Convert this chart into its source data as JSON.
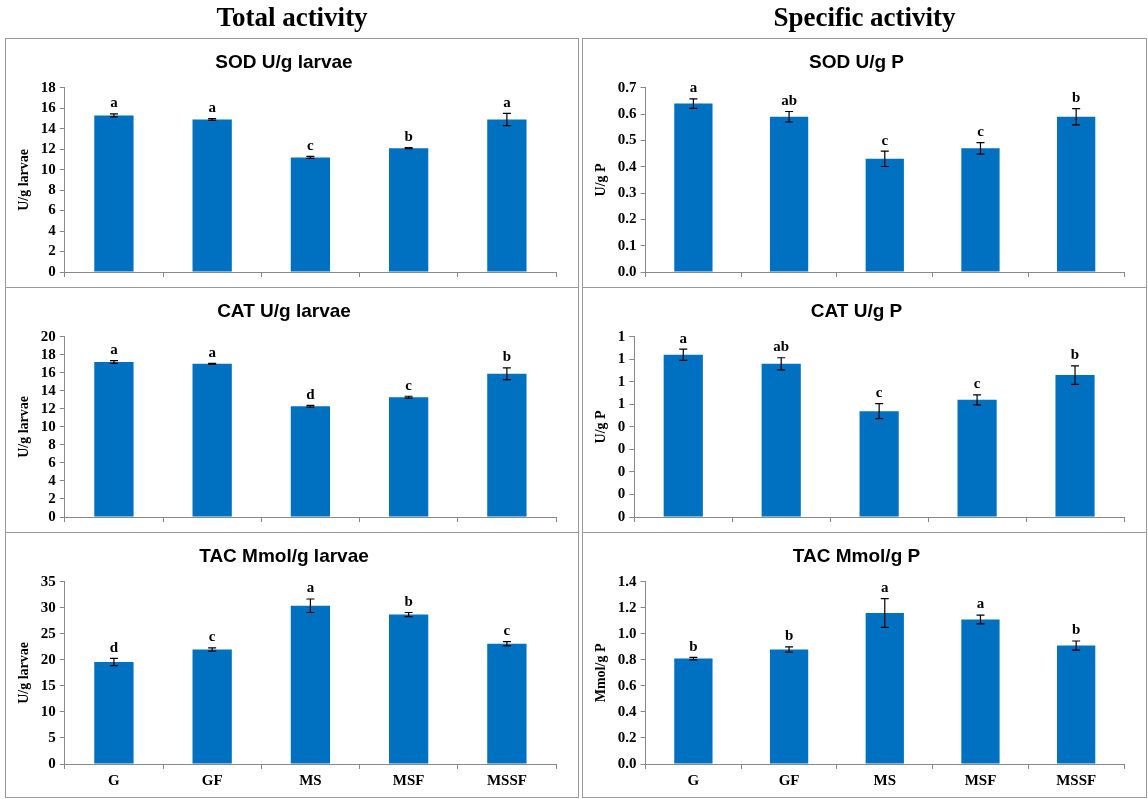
{
  "chart_data": [
    {
      "type": "bar",
      "title": "Total activity",
      "subtitle": "SOD U/g larvae",
      "ylabel": "U/g larvae",
      "categories": [
        "G",
        "GF",
        "MS",
        "MSF",
        "MSSF"
      ],
      "values": [
        15.3,
        14.9,
        11.2,
        12.1,
        14.9
      ],
      "errors": [
        0.15,
        0.08,
        0.1,
        0.05,
        0.6
      ],
      "color": "#0070c0",
      "ylim": [
        0,
        18
      ],
      "yticks": [
        0,
        2,
        4,
        6,
        8,
        10,
        12,
        14,
        16,
        18
      ],
      "grid": false,
      "legend": false,
      "tick_labels": "y",
      "annotations": [
        {
          "text": "a",
          "x": "G",
          "y": 15.45
        },
        {
          "text": "a",
          "x": "GF",
          "y": 14.98
        },
        {
          "text": "c",
          "x": "MS",
          "y": 11.3
        },
        {
          "text": "b",
          "x": "MSF",
          "y": 12.15
        },
        {
          "text": "a",
          "x": "MSSF",
          "y": 15.5
        }
      ]
    },
    {
      "type": "bar",
      "title": "Specific activity",
      "subtitle": "SOD U/g P",
      "ylabel": "U/g P",
      "categories": [
        "G",
        "GF",
        "MS",
        "MSF",
        "MSSF"
      ],
      "values": [
        0.64,
        0.59,
        0.43,
        0.47,
        0.59
      ],
      "errors": [
        0.018,
        0.02,
        0.029,
        0.022,
        0.031
      ],
      "color": "#0070c0",
      "ylim": [
        0,
        0.7
      ],
      "yticks": [
        {
          "value": 0,
          "label": "0.0"
        },
        0.1,
        0.2,
        0.3,
        0.4,
        0.5,
        0.6,
        0.7
      ],
      "grid": false,
      "legend": false,
      "tick_labels": "y",
      "annotations": [
        {
          "text": "a",
          "x": "G",
          "y": 0.658
        },
        {
          "text": "ab",
          "x": "GF",
          "y": 0.61
        },
        {
          "text": "c",
          "x": "MS",
          "y": 0.459
        },
        {
          "text": "c",
          "x": "MSF",
          "y": 0.492
        },
        {
          "text": "b",
          "x": "MSSF",
          "y": 0.621
        }
      ]
    },
    {
      "type": "bar",
      "title": "CAT U/g larvae",
      "ylabel": "U/g larvae",
      "categories": [
        "G",
        "GF",
        "MS",
        "MSF",
        "MSSF"
      ],
      "values": [
        17.2,
        17.0,
        12.3,
        13.3,
        15.9
      ],
      "errors": [
        0.15,
        0.05,
        0.1,
        0.1,
        0.65
      ],
      "color": "#0070c0",
      "ylim": [
        0,
        20
      ],
      "yticks": [
        0,
        2,
        4,
        6,
        8,
        10,
        12,
        14,
        16,
        18,
        20
      ],
      "grid": false,
      "legend": false,
      "tick_labels": "y",
      "annotations": [
        {
          "text": "a",
          "x": "G",
          "y": 17.35
        },
        {
          "text": "a",
          "x": "GF",
          "y": 17.05
        },
        {
          "text": "d",
          "x": "MS",
          "y": 12.4
        },
        {
          "text": "c",
          "x": "MSF",
          "y": 13.4
        },
        {
          "text": "b",
          "x": "MSSF",
          "y": 16.55
        }
      ]
    },
    {
      "type": "bar",
      "title": "CAT U/g P",
      "ylabel": "U/g P",
      "categories": [
        "G",
        "GF",
        "MS",
        "MSF",
        "MSSF"
      ],
      "values": [
        0.72,
        0.68,
        0.47,
        0.52,
        0.63
      ],
      "errors": [
        0.025,
        0.027,
        0.033,
        0.022,
        0.041
      ],
      "color": "#0070c0",
      "ylim": [
        0,
        0.8
      ],
      "yticks": [
        {
          "value": 0,
          "label": "0"
        },
        {
          "value": 0.1,
          "label": "0"
        },
        {
          "value": 0.2,
          "label": "0"
        },
        {
          "value": 0.3,
          "label": "0"
        },
        {
          "value": 0.4,
          "label": "0"
        },
        {
          "value": 0.5,
          "label": "1"
        },
        {
          "value": 0.6,
          "label": "1"
        },
        {
          "value": 0.7,
          "label": "1"
        },
        {
          "value": 0.8,
          "label": "1"
        }
      ],
      "grid": false,
      "legend": false,
      "tick_labels": "y",
      "annotations": [
        "a",
        "ab",
        "c",
        "c",
        "b"
      ]
    },
    {
      "type": "bar",
      "title": "TAC Mmol/g larvae",
      "ylabel": "U/g larvae",
      "categories": [
        "G",
        "GF",
        "MS",
        "MSF",
        "MSSF"
      ],
      "values": [
        19.6,
        22.0,
        30.4,
        28.7,
        23.1
      ],
      "errors": [
        0.7,
        0.3,
        1.3,
        0.4,
        0.4
      ],
      "color": "#0070c0",
      "ylim": [
        0,
        35
      ],
      "yticks": [
        0,
        5,
        10,
        15,
        20,
        25,
        30,
        35
      ],
      "grid": false,
      "legend": false,
      "annotations": [
        {
          "text": "d",
          "x": "G",
          "y": 20.3
        },
        {
          "text": "c",
          "x": "GF",
          "y": 22.3
        },
        {
          "text": "a",
          "x": "MS",
          "y": 31.7
        },
        {
          "text": "b",
          "x": "MSF",
          "y": 29.1
        },
        {
          "text": "c",
          "x": "MSSF",
          "y": 23.5
        }
      ]
    },
    {
      "type": "bar",
      "title": "TAC Mmol/g P",
      "ylabel": "Mmol/g P",
      "categories": [
        "G",
        "GF",
        "MS",
        "MSF",
        "MSSF"
      ],
      "values": [
        0.81,
        0.88,
        1.16,
        1.11,
        0.91
      ],
      "errors": [
        0.01,
        0.02,
        0.11,
        0.034,
        0.035
      ],
      "color": "#0070c0",
      "ylim": [
        0,
        1.4
      ],
      "yticks": [
        {
          "value": 0,
          "label": "0.0"
        },
        0.2,
        0.4,
        0.6,
        0.8,
        {
          "value": 1,
          "label": "1.0"
        },
        1.2,
        1.4
      ],
      "grid": false,
      "legend": false,
      "annotations": [
        {
          "text": "b",
          "x": "G",
          "y": 0.82
        },
        {
          "text": "b",
          "x": "GF",
          "y": 0.9
        },
        {
          "text": "a",
          "x": "MS",
          "y": 1.27
        },
        {
          "text": "a",
          "x": "MSF",
          "y": 1.144
        },
        {
          "text": "b",
          "x": "MSSF",
          "y": 0.945
        }
      ]
    }
  ]
}
